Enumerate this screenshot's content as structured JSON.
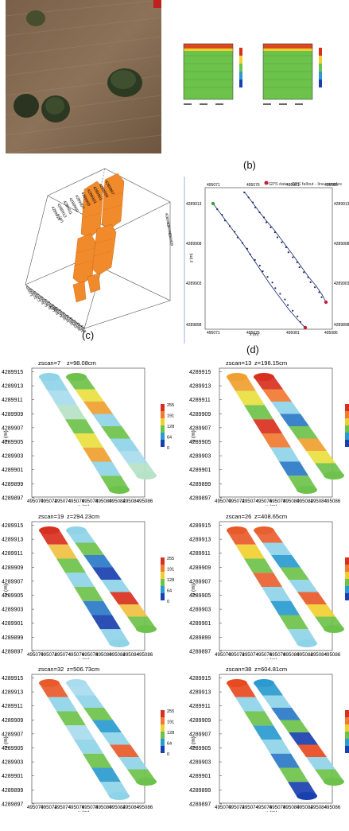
{
  "panel_labels": {
    "b": "(b)",
    "c": "(c)",
    "d": "(d)"
  },
  "gps_panel": {
    "legend": "GPS data - GPS fallout - line samples",
    "x_ticks": [
      "495071",
      "495076",
      "495081",
      "495086"
    ],
    "y_ticks": [
      "4289913",
      "4289908",
      "4289903",
      "4289898"
    ],
    "xlabel": "x (m)",
    "ylabel": "y (m)"
  },
  "block3d": {
    "x_ticks": [
      "495071",
      "495072",
      "495073",
      "495074",
      "495075",
      "495076",
      "495077",
      "495078",
      "495079",
      "495080",
      "495081",
      "495082",
      "495083",
      "495084",
      "495085",
      "495086"
    ],
    "y_ticks": [
      "4289897",
      "4289899",
      "4289901",
      "4289903",
      "4289905",
      "4289907",
      "4289909",
      "4289911",
      "4289913",
      "4289915"
    ],
    "xlabel": "x (m)",
    "ylabel": "y (m)"
  },
  "slice_common": {
    "y_ticks": [
      "4289915",
      "4289913",
      "4289911",
      "4289909",
      "4289907",
      "4289905",
      "4289903",
      "4289901",
      "4289899",
      "4289897"
    ],
    "x_ticks": [
      "495070",
      "495072",
      "495074",
      "495076",
      "495078",
      "495080",
      "495082",
      "495084",
      "495086"
    ],
    "xlabel": "x (m)",
    "ylabel": "y (m)",
    "colorbar_ticks": [
      "255",
      "191",
      "128",
      "64",
      "0"
    ]
  },
  "slices": [
    {
      "zscan": "zscan=7",
      "z": "z=98.08cm"
    },
    {
      "zscan": "zscan=13",
      "z": "z=196.15cm"
    },
    {
      "zscan": "zscan=19",
      "z": "z=294.23cm"
    },
    {
      "zscan": "zscan=26",
      "z": "z=408.65cm"
    },
    {
      "zscan": "zscan=32",
      "z": "z=506.73cm"
    },
    {
      "zscan": "zscan=38",
      "z": "z=604.81cm"
    }
  ],
  "colors": {
    "bar_top": "#d83020",
    "bar_bottom": "#1a40b0",
    "isosurface": "#f08a2a",
    "gps_line": "#1a2a6e"
  }
}
